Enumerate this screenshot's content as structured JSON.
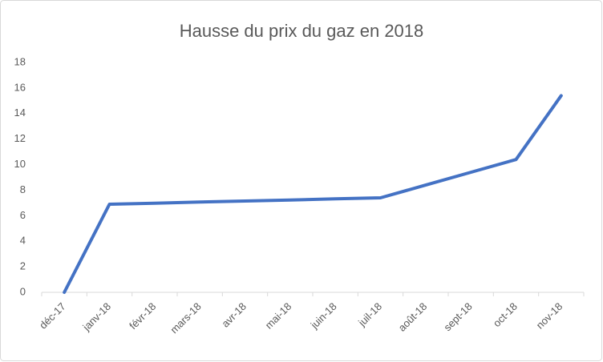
{
  "chart_data": {
    "type": "line",
    "title": "Hausse du prix du gaz en 2018",
    "categories": [
      "déc-17",
      "janv-18",
      "févr-18",
      "mars-18",
      "avr-18",
      "mai-18",
      "juin-18",
      "juil-18",
      "août-18",
      "sept-18",
      "oct-18",
      "nov-18"
    ],
    "values": [
      0,
      6.9,
      6.98,
      7.07,
      7.15,
      7.23,
      7.32,
      7.4,
      8.4,
      9.4,
      10.4,
      15.4
    ],
    "color": "#4472c4",
    "ylim": [
      0,
      18
    ],
    "yticks": [
      0,
      2,
      4,
      6,
      8,
      10,
      12,
      14,
      16,
      18
    ],
    "grid": false
  }
}
